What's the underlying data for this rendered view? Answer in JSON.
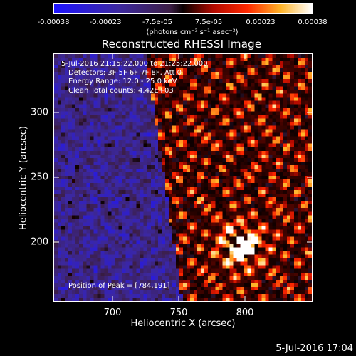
{
  "colorbar": {
    "tick_labels": [
      "-0.00038",
      "-0.00023",
      "-7.5e-05",
      "7.5e-05",
      "0.00023",
      "0.00038"
    ],
    "units": "(photons cm⁻² s⁻¹ asec⁻²)"
  },
  "title": "Reconstructed RHESSI Image",
  "annotations": {
    "time_range": "5-Jul-2016 21:15:22.000 to 21:25:22.000",
    "detectors": "Detectors: 3F 5F 6F 7F 8F, Att 0",
    "energy": "Energy Range: 12.0 - 25.0 keV",
    "clean": "Clean    Total counts: 4.42E+03",
    "peak": "Position of Peak = [784,191]"
  },
  "axes": {
    "xlabel": "Heliocentric X (arcsec)",
    "ylabel": "Heliocentric Y (arcsec)",
    "xticks": [
      "700",
      "750",
      "800"
    ],
    "yticks": [
      "200",
      "250",
      "300"
    ]
  },
  "footer_date": "5-Jul-2016 17:04"
}
